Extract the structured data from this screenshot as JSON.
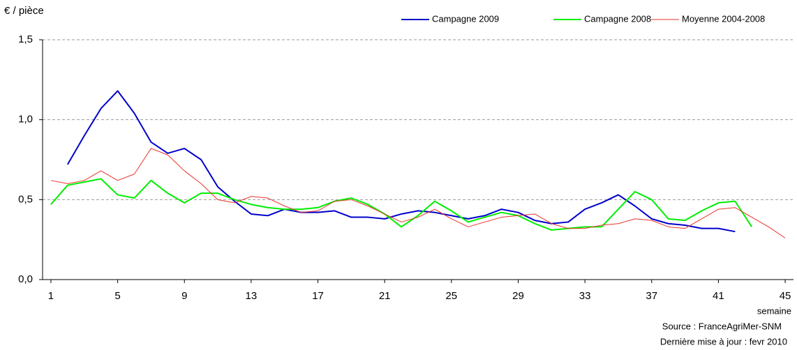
{
  "chart_data": {
    "type": "line",
    "y_label": "€ / pièce",
    "x_label": "semaine",
    "source": "Source : FranceAgriMer-SNM",
    "update_note": "Dernière mise à jour : fevr 2010",
    "x": [
      1,
      2,
      3,
      4,
      5,
      6,
      7,
      8,
      9,
      10,
      11,
      12,
      13,
      14,
      15,
      16,
      17,
      18,
      19,
      20,
      21,
      22,
      23,
      24,
      25,
      26,
      27,
      28,
      29,
      30,
      31,
      32,
      33,
      34,
      35,
      36,
      37,
      38,
      39,
      40,
      41,
      42,
      43,
      44,
      45
    ],
    "xlim": [
      0.5,
      45.5
    ],
    "xticks": [
      1,
      5,
      9,
      13,
      17,
      21,
      25,
      29,
      33,
      37,
      41,
      45
    ],
    "ylim": [
      0,
      1.5
    ],
    "yticks": [
      {
        "value": 0,
        "label": "0,0"
      },
      {
        "value": 0.5,
        "label": "0,5"
      },
      {
        "value": 1.0,
        "label": "1,0"
      },
      {
        "value": 1.5,
        "label": "1,5"
      }
    ],
    "grid": true,
    "legend": "top-right",
    "series": [
      {
        "name": "Campagne 2009",
        "color": "#0000cc",
        "width": 2,
        "values": [
          null,
          0.72,
          0.9,
          1.07,
          1.18,
          1.04,
          0.86,
          0.79,
          0.82,
          0.75,
          0.58,
          0.49,
          0.41,
          0.4,
          0.44,
          0.42,
          0.42,
          0.43,
          0.39,
          0.39,
          0.38,
          0.41,
          0.43,
          0.42,
          0.4,
          0.38,
          0.4,
          0.44,
          0.42,
          0.37,
          0.35,
          0.36,
          0.44,
          0.48,
          0.53,
          0.46,
          0.38,
          0.35,
          0.34,
          0.32,
          0.32,
          0.3,
          null,
          null,
          null
        ]
      },
      {
        "name": "Campagne 2008",
        "color": "#00ee00",
        "width": 2,
        "values": [
          0.47,
          0.59,
          0.61,
          0.63,
          0.53,
          0.51,
          0.62,
          0.54,
          0.48,
          0.54,
          0.54,
          0.5,
          0.47,
          0.45,
          0.44,
          0.44,
          0.45,
          0.49,
          0.51,
          0.47,
          0.41,
          0.33,
          0.4,
          0.49,
          0.43,
          0.36,
          0.39,
          0.42,
          0.4,
          0.35,
          0.31,
          0.32,
          0.33,
          0.33,
          0.44,
          0.55,
          0.5,
          0.38,
          0.37,
          0.43,
          0.48,
          0.49,
          0.33,
          null,
          null
        ]
      },
      {
        "name": "Moyenne 2004-2008",
        "color": "#e8332a",
        "width": 1,
        "values": [
          0.62,
          0.6,
          0.62,
          0.68,
          0.62,
          0.66,
          0.82,
          0.78,
          0.68,
          0.6,
          0.5,
          0.48,
          0.52,
          0.51,
          0.46,
          0.42,
          0.43,
          0.49,
          0.5,
          0.46,
          0.41,
          0.36,
          0.39,
          0.44,
          0.38,
          0.33,
          0.36,
          0.39,
          0.4,
          0.41,
          0.35,
          0.32,
          0.32,
          0.34,
          0.35,
          0.38,
          0.37,
          0.33,
          0.32,
          0.38,
          0.44,
          0.45,
          0.39,
          0.33,
          0.26
        ]
      }
    ]
  }
}
